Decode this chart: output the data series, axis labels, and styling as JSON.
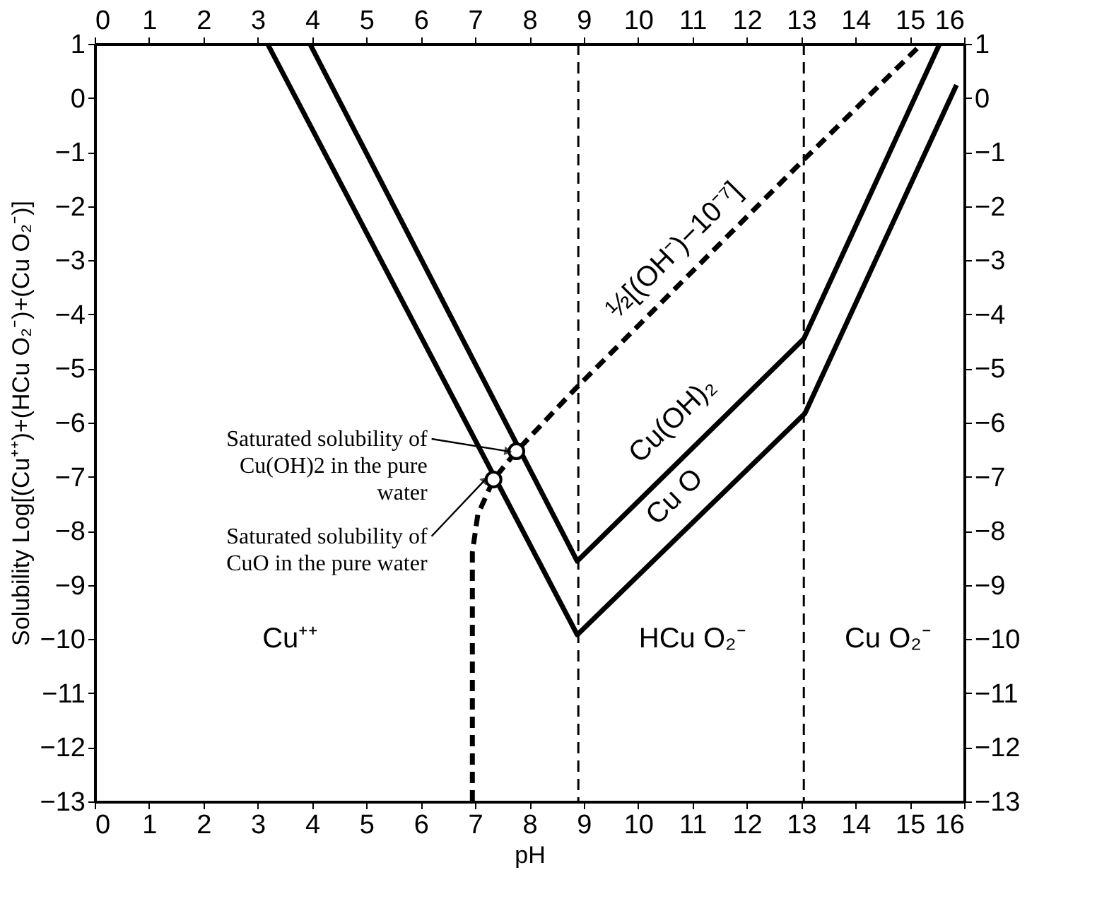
{
  "chart_data": {
    "type": "line",
    "xlabel": "pH",
    "ylabel": "Solubility      Log[(Cu⁺⁺)+(HCu O₂⁻)+(Cu O₂⁻)]",
    "xlim": [
      0,
      16
    ],
    "xticks": [
      0,
      1,
      2,
      3,
      4,
      5,
      6,
      7,
      8,
      9,
      10,
      11,
      12,
      13,
      14,
      15,
      16
    ],
    "x2lim": [
      0,
      16
    ],
    "x2ticks": [
      0,
      1,
      2,
      3,
      4,
      5,
      6,
      7,
      8,
      9,
      10,
      11,
      12,
      13,
      14,
      15,
      16
    ],
    "ylim": [
      -13,
      1
    ],
    "yticks": [
      -13,
      -12,
      -11,
      -10,
      -9,
      -8,
      -7,
      -6,
      -5,
      -4,
      -3,
      -2,
      -1,
      0,
      1
    ],
    "y2lim": [
      -13,
      1
    ],
    "y2ticks": [
      -13,
      -12,
      -11,
      -10,
      -9,
      -8,
      -7,
      -6,
      -5,
      -4,
      -3,
      -2,
      -1,
      0,
      1
    ],
    "series": [
      {
        "name": "Cu(OH)₂",
        "color": "#000000",
        "line_style": "solid",
        "marker": "none",
        "x": [
          3.96,
          8.88,
          13.05,
          15.55
        ],
        "values": [
          1,
          -8.56,
          -4.45,
          1
        ]
      },
      {
        "name": "Cu O",
        "color": "#000000",
        "line_style": "solid",
        "marker": "none",
        "x": [
          3.18,
          8.88,
          13.07,
          15.86
        ],
        "values": [
          1,
          -9.92,
          -5.83,
          0.24
        ]
      },
      {
        "name": "½[(OH⁻)−10⁻⁷]",
        "color": "#000000",
        "line_style": "dashed",
        "marker": "none",
        "x": [
          6.95,
          6.95,
          7.05,
          7.34,
          7.76,
          8.83,
          13.05,
          15.16
        ],
        "values": [
          -13,
          -8.4,
          -7.7,
          -7.05,
          -6.53,
          -5.39,
          -1.14,
          0.94
        ]
      },
      {
        "type": "scatter",
        "color": "#000000",
        "marker": "circle",
        "x": [
          7.76,
          7.34
        ],
        "values": [
          -6.53,
          -7.05
        ]
      }
    ],
    "ref_lines": [
      {
        "axis": "x",
        "value": 8.9,
        "line_style": "dashed",
        "color": "#000000"
      },
      {
        "axis": "x",
        "value": 13.05,
        "line_style": "dashed",
        "color": "#000000"
      }
    ],
    "annotations": [
      {
        "text": "Saturated solubility of Cu(OH)2 in the pure water",
        "x": 7.76,
        "y": -6.53
      },
      {
        "text": "Saturated solubility of CuO in the pure water",
        "x": 7.34,
        "y": -7.05
      },
      "Cu⁺⁺",
      "HCu O₂⁻",
      "Cu O₂⁻"
    ],
    "grid": false
  }
}
